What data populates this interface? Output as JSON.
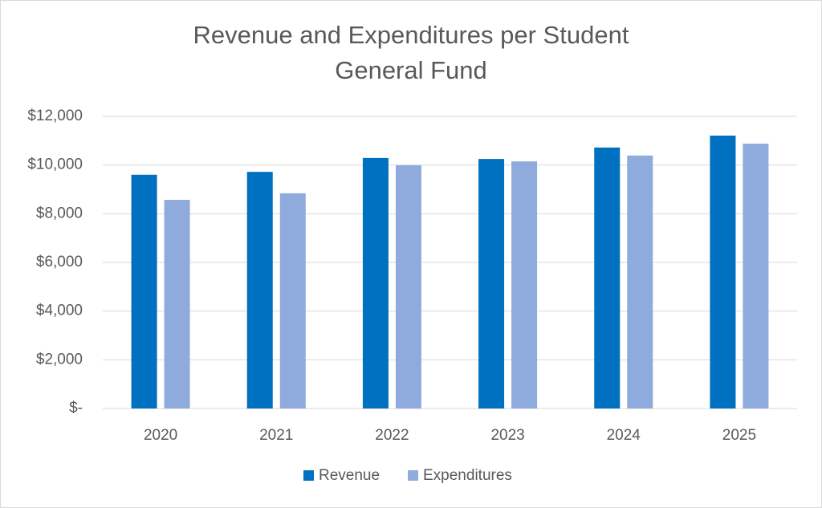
{
  "chart_data": {
    "type": "bar",
    "title": "Revenue and Expenditures per Student",
    "subtitle": "General Fund",
    "categories": [
      "2020",
      "2021",
      "2022",
      "2023",
      "2024",
      "2025"
    ],
    "series": [
      {
        "name": "Revenue",
        "color": "#0070c0",
        "values": [
          9600,
          9720,
          10290,
          10250,
          10720,
          11210
        ]
      },
      {
        "name": "Expenditures",
        "color": "#8faadc",
        "values": [
          8570,
          8840,
          9990,
          10150,
          10390,
          10880
        ]
      }
    ],
    "ylim": [
      0,
      12000
    ],
    "yticks": [
      {
        "value": 0,
        "label": "$-"
      },
      {
        "value": 2000,
        "label": "$2,000"
      },
      {
        "value": 4000,
        "label": "$4,000"
      },
      {
        "value": 6000,
        "label": "$6,000"
      },
      {
        "value": 8000,
        "label": "$8,000"
      },
      {
        "value": 10000,
        "label": "$10,000"
      },
      {
        "value": 12000,
        "label": "$12,000"
      }
    ],
    "grid": true,
    "legend": "bottom"
  }
}
